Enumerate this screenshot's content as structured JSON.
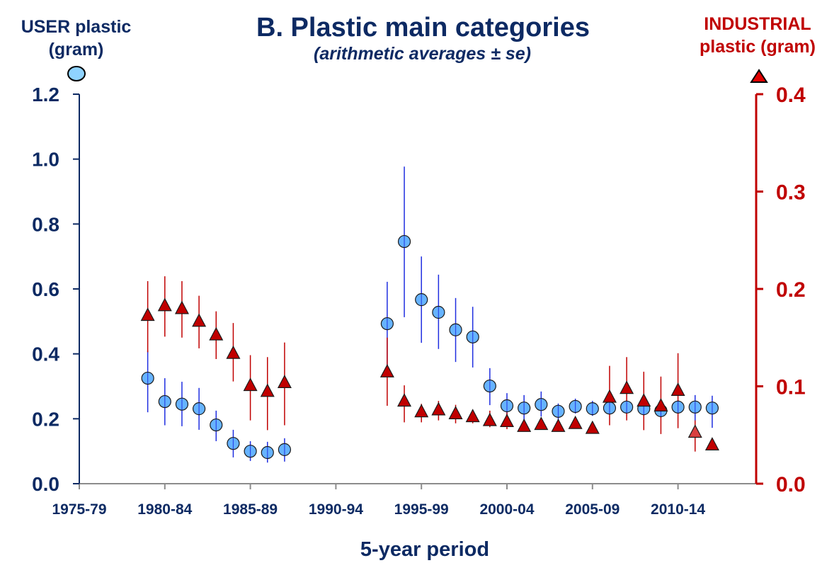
{
  "chart_data": {
    "type": "scatter",
    "title": "B.  Plastic main categories",
    "subtitle": "(arithmetic averages ± se)",
    "xlabel": "5-year period",
    "ylabel_left": [
      "USER plastic",
      "(gram)"
    ],
    "ylabel_right": [
      "INDUSTRIAL",
      "plastic (gram)"
    ],
    "x_tick_labels": [
      "1975-79",
      "1980-84",
      "1985-89",
      "1990-94",
      "1995-99",
      "2000-04",
      "2005-09",
      "2010-14"
    ],
    "x_tick_years": [
      1975,
      1980,
      1985,
      1990,
      1995,
      2000,
      2005,
      2010
    ],
    "xlim": [
      1975,
      2015
    ],
    "y_left": {
      "ylim": [
        0,
        1.2
      ],
      "ticks": [
        "0.0",
        "0.2",
        "0.4",
        "0.6",
        "0.8",
        "1.0",
        "1.2"
      ],
      "tick_values": [
        0,
        0.2,
        0.4,
        0.6,
        0.8,
        1.0,
        1.2
      ],
      "color": "#0d2a63"
    },
    "y_right": {
      "ylim": [
        0,
        0.4
      ],
      "ticks": [
        "0.0",
        "0.1",
        "0.2",
        "0.3",
        "0.4"
      ],
      "tick_values": [
        0,
        0.1,
        0.2,
        0.3,
        0.4
      ],
      "color": "#c00000"
    },
    "grid": false,
    "series": [
      {
        "name": "USER plastic",
        "axis": "left",
        "marker": "circle",
        "fill": "#66b3ff",
        "errorbar_color": "#1f2ee0",
        "points": [
          {
            "x": 1979,
            "y": 0.325,
            "lo": 0.22,
            "hi": 0.41
          },
          {
            "x": 1980,
            "y": 0.253,
            "lo": 0.18,
            "hi": 0.325
          },
          {
            "x": 1981,
            "y": 0.245,
            "lo": 0.177,
            "hi": 0.314
          },
          {
            "x": 1982,
            "y": 0.231,
            "lo": 0.166,
            "hi": 0.295
          },
          {
            "x": 1983,
            "y": 0.181,
            "lo": 0.131,
            "hi": 0.225
          },
          {
            "x": 1984,
            "y": 0.124,
            "lo": 0.081,
            "hi": 0.166
          },
          {
            "x": 1985,
            "y": 0.1,
            "lo": 0.07,
            "hi": 0.131
          },
          {
            "x": 1986,
            "y": 0.096,
            "lo": 0.065,
            "hi": 0.129
          },
          {
            "x": 1987,
            "y": 0.105,
            "lo": 0.068,
            "hi": 0.14
          },
          {
            "x": 1993,
            "y": 0.493,
            "lo": 0.365,
            "hi": 0.622
          },
          {
            "x": 1994,
            "y": 0.746,
            "lo": 0.513,
            "hi": 0.977
          },
          {
            "x": 1995,
            "y": 0.567,
            "lo": 0.434,
            "hi": 0.7
          },
          {
            "x": 1996,
            "y": 0.528,
            "lo": 0.415,
            "hi": 0.644
          },
          {
            "x": 1997,
            "y": 0.474,
            "lo": 0.375,
            "hi": 0.572
          },
          {
            "x": 1998,
            "y": 0.452,
            "lo": 0.358,
            "hi": 0.545
          },
          {
            "x": 1999,
            "y": 0.301,
            "lo": 0.242,
            "hi": 0.356
          },
          {
            "x": 2000,
            "y": 0.24,
            "lo": 0.203,
            "hi": 0.279
          },
          {
            "x": 2001,
            "y": 0.233,
            "lo": 0.194,
            "hi": 0.273
          },
          {
            "x": 2002,
            "y": 0.244,
            "lo": 0.207,
            "hi": 0.284
          },
          {
            "x": 2003,
            "y": 0.223,
            "lo": 0.185,
            "hi": 0.247
          },
          {
            "x": 2004,
            "y": 0.238,
            "lo": 0.216,
            "hi": 0.262
          },
          {
            "x": 2005,
            "y": 0.231,
            "lo": 0.209,
            "hi": 0.255
          },
          {
            "x": 2006,
            "y": 0.233,
            "lo": 0.215,
            "hi": 0.252
          },
          {
            "x": 2007,
            "y": 0.236,
            "lo": 0.218,
            "hi": 0.255
          },
          {
            "x": 2008,
            "y": 0.231,
            "lo": 0.212,
            "hi": 0.25
          },
          {
            "x": 2009,
            "y": 0.225,
            "lo": 0.205,
            "hi": 0.245
          },
          {
            "x": 2010,
            "y": 0.236,
            "lo": 0.216,
            "hi": 0.256
          },
          {
            "x": 2011,
            "y": 0.236,
            "lo": 0.185,
            "hi": 0.273
          },
          {
            "x": 2012,
            "y": 0.233,
            "lo": 0.172,
            "hi": 0.271
          }
        ]
      },
      {
        "name": "INDUSTRIAL plastic",
        "axis": "right",
        "marker": "triangle",
        "fill": "#c00000",
        "errorbar_color": "#c00000",
        "points": [
          {
            "x": 1979,
            "y": 0.172,
            "lo": 0.135,
            "hi": 0.208
          },
          {
            "x": 1980,
            "y": 0.182,
            "lo": 0.151,
            "hi": 0.213
          },
          {
            "x": 1981,
            "y": 0.179,
            "lo": 0.15,
            "hi": 0.208
          },
          {
            "x": 1982,
            "y": 0.166,
            "lo": 0.139,
            "hi": 0.193
          },
          {
            "x": 1983,
            "y": 0.152,
            "lo": 0.128,
            "hi": 0.177
          },
          {
            "x": 1984,
            "y": 0.133,
            "lo": 0.105,
            "hi": 0.165
          },
          {
            "x": 1985,
            "y": 0.1,
            "lo": 0.065,
            "hi": 0.132
          },
          {
            "x": 1986,
            "y": 0.094,
            "lo": 0.055,
            "hi": 0.13
          },
          {
            "x": 1987,
            "y": 0.103,
            "lo": 0.06,
            "hi": 0.145
          },
          {
            "x": 1993,
            "y": 0.114,
            "lo": 0.08,
            "hi": 0.15
          },
          {
            "x": 1994,
            "y": 0.084,
            "lo": 0.063,
            "hi": 0.101
          },
          {
            "x": 1995,
            "y": 0.073,
            "lo": 0.063,
            "hi": 0.082
          },
          {
            "x": 1996,
            "y": 0.075,
            "lo": 0.065,
            "hi": 0.085
          },
          {
            "x": 1997,
            "y": 0.071,
            "lo": 0.062,
            "hi": 0.081
          },
          {
            "x": 1998,
            "y": 0.068,
            "lo": 0.062,
            "hi": 0.076
          },
          {
            "x": 1999,
            "y": 0.064,
            "lo": 0.058,
            "hi": 0.075
          },
          {
            "x": 2000,
            "y": 0.063,
            "lo": 0.056,
            "hi": 0.073
          },
          {
            "x": 2001,
            "y": 0.058,
            "lo": 0.054,
            "hi": 0.064
          },
          {
            "x": 2002,
            "y": 0.06,
            "lo": 0.056,
            "hi": 0.066
          },
          {
            "x": 2003,
            "y": 0.058,
            "lo": 0.055,
            "hi": 0.062
          },
          {
            "x": 2004,
            "y": 0.061,
            "lo": 0.057,
            "hi": 0.066
          },
          {
            "x": 2005,
            "y": 0.056,
            "lo": 0.053,
            "hi": 0.06
          },
          {
            "x": 2006,
            "y": 0.088,
            "lo": 0.06,
            "hi": 0.121
          },
          {
            "x": 2007,
            "y": 0.097,
            "lo": 0.065,
            "hi": 0.13
          },
          {
            "x": 2008,
            "y": 0.084,
            "lo": 0.055,
            "hi": 0.115
          },
          {
            "x": 2009,
            "y": 0.079,
            "lo": 0.051,
            "hi": 0.11
          },
          {
            "x": 2010,
            "y": 0.095,
            "lo": 0.057,
            "hi": 0.134
          },
          {
            "x": 2011,
            "y": 0.052,
            "lo": 0.033,
            "hi": 0.065,
            "fill": "#d94040"
          },
          {
            "x": 2012,
            "y": 0.039,
            "lo": 0.039,
            "hi": 0.039
          }
        ]
      }
    ]
  }
}
